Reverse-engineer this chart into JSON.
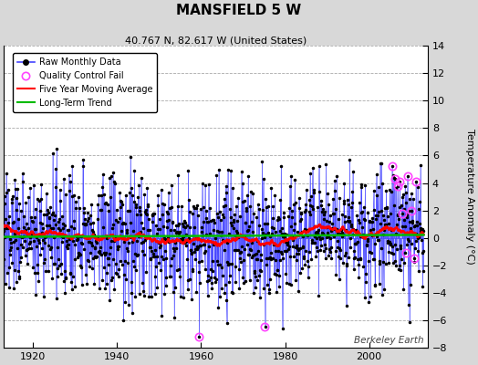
{
  "title": "MANSFIELD 5 W",
  "subtitle": "40.767 N, 82.617 W (United States)",
  "ylabel": "Temperature Anomaly (°C)",
  "watermark": "Berkeley Earth",
  "year_start": 1912,
  "year_end": 2013,
  "xlim": [
    1913,
    2014
  ],
  "ylim": [
    -8,
    14
  ],
  "yticks": [
    -8,
    -6,
    -4,
    -2,
    0,
    2,
    4,
    6,
    8,
    10,
    12,
    14
  ],
  "xticks": [
    1920,
    1940,
    1960,
    1980,
    2000
  ],
  "bg_color": "#d8d8d8",
  "plot_bg_color": "#ffffff",
  "raw_line_color": "#4444ff",
  "raw_dot_color": "#000000",
  "qc_fail_color": "#ff44ff",
  "moving_avg_color": "#ff0000",
  "trend_color": "#00bb00",
  "seed": 137,
  "qc_fail_years": [
    1959.5,
    1975.2,
    2005.5,
    2006.1,
    2006.8,
    2007.3,
    2008.0,
    2008.7,
    2009.2,
    2010.0,
    2010.7,
    2011.2
  ],
  "qc_fail_vals": [
    -7.2,
    -6.5,
    5.2,
    4.3,
    3.8,
    4.1,
    1.8,
    -1.1,
    4.5,
    2.0,
    -1.5,
    4.1
  ]
}
